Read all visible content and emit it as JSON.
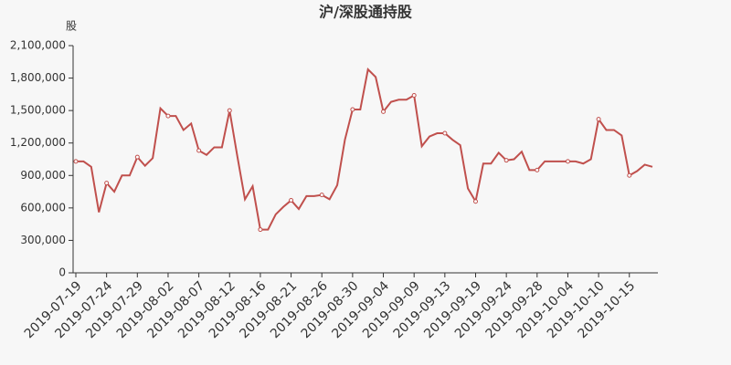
{
  "chart_data": {
    "type": "line",
    "title": "沪/深股通持股",
    "y_label": "股",
    "categories": [
      "2019-07-19",
      null,
      null,
      null,
      "2019-07-24",
      null,
      null,
      null,
      "2019-07-29",
      null,
      null,
      null,
      "2019-08-02",
      null,
      null,
      null,
      "2019-08-07",
      null,
      null,
      null,
      "2019-08-12",
      null,
      null,
      null,
      "2019-08-16",
      null,
      null,
      null,
      "2019-08-21",
      null,
      null,
      null,
      "2019-08-26",
      null,
      null,
      null,
      "2019-08-30",
      null,
      null,
      null,
      "2019-09-04",
      null,
      null,
      null,
      "2019-09-09",
      null,
      null,
      null,
      "2019-09-13",
      null,
      null,
      null,
      "2019-09-19",
      null,
      null,
      null,
      "2019-09-24",
      null,
      null,
      null,
      "2019-09-28",
      null,
      null,
      null,
      "2019-10-04",
      null,
      null,
      null,
      "2019-10-10",
      null,
      null,
      null,
      "2019-10-15",
      null,
      null,
      null
    ],
    "series": [
      {
        "name": "沪/深股通持股",
        "color": "#c0504d",
        "values": [
          1030000,
          1030000,
          980000,
          560000,
          830000,
          750000,
          900000,
          900000,
          1070000,
          990000,
          1060000,
          1520000,
          1450000,
          1450000,
          1320000,
          1380000,
          1130000,
          1090000,
          1160000,
          1160000,
          1500000,
          1080000,
          680000,
          800000,
          400000,
          400000,
          540000,
          610000,
          670000,
          590000,
          710000,
          710000,
          720000,
          680000,
          810000,
          1230000,
          1510000,
          1510000,
          1880000,
          1810000,
          1490000,
          1580000,
          1600000,
          1600000,
          1640000,
          1170000,
          1260000,
          1290000,
          1290000,
          1230000,
          1180000,
          780000,
          660000,
          1010000,
          1010000,
          1110000,
          1040000,
          1050000,
          1120000,
          950000,
          950000,
          1030000,
          1030000,
          1030000,
          1030000,
          1030000,
          1010000,
          1050000,
          1420000,
          1320000,
          1320000,
          1270000,
          900000,
          940000,
          1000000,
          980000
        ]
      }
    ],
    "ylim": [
      0,
      2100000
    ],
    "yticks": [
      0,
      {
        "value": 300000,
        "label": "300,000"
      },
      {
        "value": 600000,
        "label": "600,000"
      },
      {
        "value": 900000,
        "label": "900,000"
      },
      {
        "value": 1200000,
        "label": "1,200,000"
      },
      {
        "value": 1500000,
        "label": "1,500,000"
      },
      {
        "value": 1800000,
        "label": "1,800,000"
      },
      {
        "value": 2100000,
        "label": "2,100,000"
      }
    ],
    "grid": false
  }
}
